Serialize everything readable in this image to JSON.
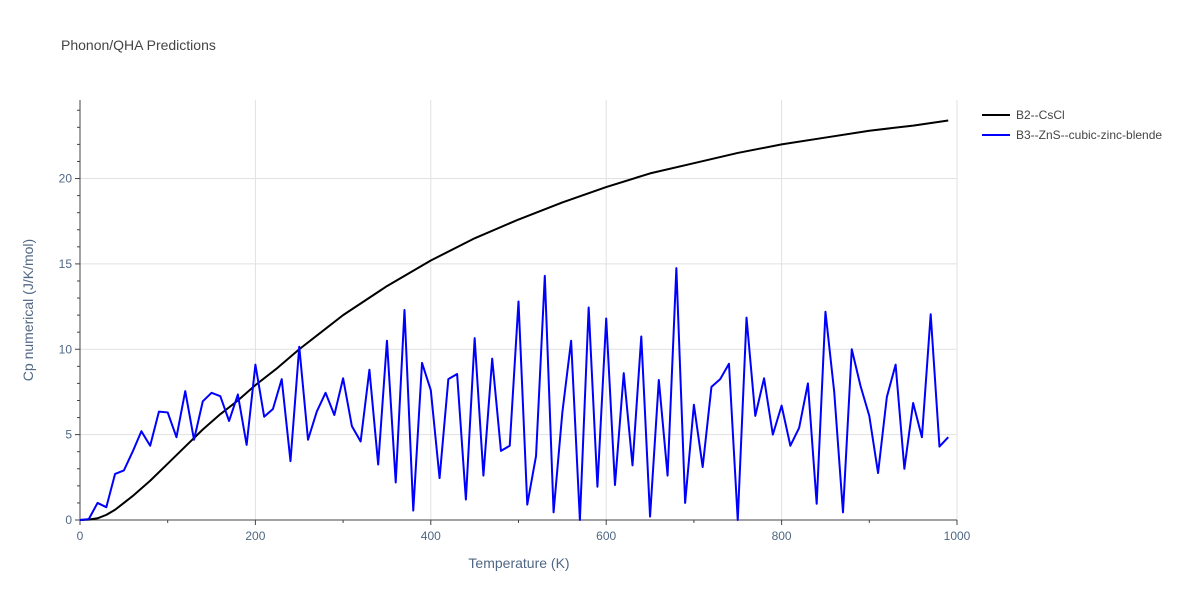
{
  "chart_data": {
    "type": "line",
    "title": "Phonon/QHA Predictions",
    "xlabel": "Temperature (K)",
    "ylabel": "Cp numerical (J/K/mol)",
    "xlim": [
      0,
      1000
    ],
    "ylim": [
      0,
      24.6
    ],
    "xticks": [
      0,
      200,
      400,
      600,
      800,
      1000
    ],
    "yticks": [
      0,
      5,
      10,
      15,
      20
    ],
    "grid": true,
    "legend_position": "top-right (outside plot)",
    "series": [
      {
        "name": "B2--CsCl",
        "color": "#000000",
        "x": [
          0,
          10,
          20,
          30,
          40,
          50,
          60,
          80,
          100,
          120,
          140,
          160,
          180,
          200,
          225,
          250,
          275,
          300,
          350,
          400,
          450,
          500,
          550,
          600,
          650,
          700,
          750,
          800,
          850,
          900,
          950,
          990
        ],
        "y": [
          0,
          0.02,
          0.1,
          0.3,
          0.6,
          1.0,
          1.4,
          2.3,
          3.3,
          4.3,
          5.3,
          6.2,
          7.0,
          7.9,
          8.9,
          10.0,
          11.0,
          12.0,
          13.7,
          15.2,
          16.5,
          17.6,
          18.6,
          19.5,
          20.3,
          20.9,
          21.5,
          22.0,
          22.4,
          22.8,
          23.1,
          23.4
        ]
      },
      {
        "name": "B3--ZnS--cubic-zinc-blende",
        "color": "#0000ff",
        "x": [
          0,
          10,
          20,
          30,
          40,
          50,
          60,
          70,
          80,
          90,
          100,
          110,
          120,
          130,
          140,
          150,
          160,
          170,
          180,
          190,
          200,
          210,
          220,
          230,
          240,
          250,
          260,
          270,
          280,
          290,
          300,
          310,
          320,
          330,
          340,
          350,
          360,
          370,
          380,
          390,
          400,
          410,
          420,
          430,
          440,
          450,
          460,
          470,
          480,
          490,
          500,
          510,
          520,
          530,
          540,
          550,
          560,
          570,
          580,
          590,
          600,
          610,
          620,
          630,
          640,
          650,
          660,
          670,
          680,
          690,
          700,
          710,
          720,
          730,
          740,
          750,
          760,
          770,
          780,
          790,
          800,
          810,
          820,
          830,
          840,
          850,
          860,
          870,
          880,
          890,
          900,
          910,
          920,
          930,
          940,
          950,
          960,
          970,
          980,
          990
        ],
        "y": [
          0,
          0.05,
          1.0,
          0.75,
          2.7,
          2.9,
          4.0,
          5.2,
          4.35,
          6.35,
          6.3,
          4.85,
          7.55,
          4.7,
          6.95,
          7.45,
          7.25,
          5.8,
          7.35,
          4.4,
          9.1,
          6.05,
          6.5,
          8.25,
          3.45,
          10.15,
          4.7,
          6.35,
          7.45,
          6.15,
          8.3,
          5.5,
          4.6,
          8.8,
          3.25,
          10.5,
          2.2,
          12.3,
          0.55,
          9.2,
          7.6,
          2.45,
          8.25,
          8.55,
          1.2,
          10.65,
          2.6,
          9.45,
          4.05,
          4.35,
          12.8,
          0.9,
          3.75,
          14.3,
          0.45,
          6.3,
          10.5,
          0.0,
          12.45,
          1.95,
          11.8,
          2.05,
          8.6,
          3.2,
          10.75,
          0.2,
          8.2,
          2.6,
          14.75,
          1.0,
          6.75,
          3.1,
          7.8,
          8.25,
          9.15,
          0.0,
          11.85,
          6.1,
          8.3,
          5.0,
          6.7,
          4.35,
          5.4,
          8.0,
          0.95,
          12.2,
          7.5,
          0.45,
          10.0,
          7.85,
          6.1,
          2.75,
          7.2,
          9.1,
          3.0,
          6.85,
          4.85,
          12.05,
          4.3,
          4.85
        ]
      }
    ]
  }
}
